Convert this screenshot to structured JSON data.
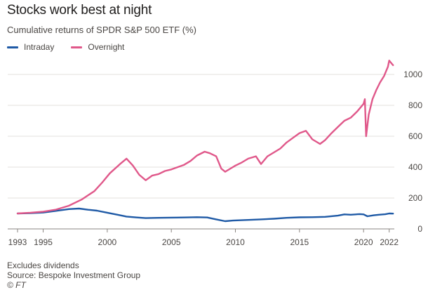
{
  "chart_data": {
    "type": "line",
    "title": "Stocks work best at night",
    "subtitle": "Cumulative returns of SPDR S&P 500 ETF (%)",
    "xlabel": "",
    "ylabel": "",
    "xlim": [
      1993.0,
      2022.4
    ],
    "ylim": [
      0,
      1100
    ],
    "x_ticks": [
      1993,
      1995,
      2000,
      2005,
      2010,
      2015,
      2020,
      2022
    ],
    "y_ticks": [
      0,
      200,
      400,
      600,
      800,
      1000
    ],
    "y_axis_side": "right",
    "grid": "horizontal",
    "legend_position": "top-left",
    "series": [
      {
        "name": "Intraday",
        "color": "#1f5aa6",
        "points": [
          [
            1993.0,
            100
          ],
          [
            1994.0,
            102
          ],
          [
            1995.0,
            106
          ],
          [
            1996.0,
            117
          ],
          [
            1997.0,
            128
          ],
          [
            1997.8,
            132
          ],
          [
            1998.5,
            124
          ],
          [
            1999.2,
            118
          ],
          [
            2000.0,
            105
          ],
          [
            2000.8,
            92
          ],
          [
            2001.5,
            80
          ],
          [
            2002.3,
            74
          ],
          [
            2003.0,
            70
          ],
          [
            2004.0,
            72
          ],
          [
            2005.0,
            73
          ],
          [
            2006.0,
            74
          ],
          [
            2007.0,
            76
          ],
          [
            2007.8,
            74
          ],
          [
            2008.5,
            62
          ],
          [
            2009.2,
            50
          ],
          [
            2009.8,
            54
          ],
          [
            2011.0,
            58
          ],
          [
            2012.0,
            62
          ],
          [
            2013.0,
            66
          ],
          [
            2014.0,
            72
          ],
          [
            2015.0,
            75
          ],
          [
            2016.0,
            76
          ],
          [
            2017.0,
            78
          ],
          [
            2018.0,
            86
          ],
          [
            2018.5,
            94
          ],
          [
            2019.0,
            92
          ],
          [
            2019.7,
            96
          ],
          [
            2020.0,
            94
          ],
          [
            2020.3,
            82
          ],
          [
            2020.8,
            88
          ],
          [
            2021.2,
            92
          ],
          [
            2021.7,
            95
          ],
          [
            2022.0,
            100
          ],
          [
            2022.3,
            99
          ]
        ]
      },
      {
        "name": "Overnight",
        "color": "#e0588a",
        "points": [
          [
            1993.0,
            100
          ],
          [
            1994.0,
            105
          ],
          [
            1995.0,
            112
          ],
          [
            1996.0,
            125
          ],
          [
            1997.0,
            150
          ],
          [
            1998.0,
            190
          ],
          [
            1999.0,
            245
          ],
          [
            1999.6,
            300
          ],
          [
            2000.2,
            360
          ],
          [
            2001.0,
            420
          ],
          [
            2001.5,
            455
          ],
          [
            2002.0,
            410
          ],
          [
            2002.5,
            350
          ],
          [
            2003.0,
            315
          ],
          [
            2003.5,
            345
          ],
          [
            2004.0,
            355
          ],
          [
            2004.5,
            375
          ],
          [
            2005.0,
            385
          ],
          [
            2005.5,
            400
          ],
          [
            2006.0,
            415
          ],
          [
            2006.5,
            440
          ],
          [
            2007.0,
            475
          ],
          [
            2007.6,
            500
          ],
          [
            2008.0,
            490
          ],
          [
            2008.5,
            470
          ],
          [
            2008.9,
            390
          ],
          [
            2009.2,
            370
          ],
          [
            2009.7,
            395
          ],
          [
            2010.0,
            410
          ],
          [
            2010.5,
            430
          ],
          [
            2011.0,
            455
          ],
          [
            2011.6,
            470
          ],
          [
            2012.0,
            420
          ],
          [
            2012.5,
            470
          ],
          [
            2013.0,
            495
          ],
          [
            2013.5,
            520
          ],
          [
            2014.0,
            560
          ],
          [
            2014.5,
            590
          ],
          [
            2015.0,
            620
          ],
          [
            2015.5,
            635
          ],
          [
            2016.0,
            580
          ],
          [
            2016.6,
            550
          ],
          [
            2017.0,
            575
          ],
          [
            2017.5,
            620
          ],
          [
            2018.0,
            660
          ],
          [
            2018.5,
            700
          ],
          [
            2019.0,
            720
          ],
          [
            2019.5,
            760
          ],
          [
            2020.0,
            810
          ],
          [
            2020.1,
            840
          ],
          [
            2020.2,
            600
          ],
          [
            2020.4,
            740
          ],
          [
            2020.7,
            840
          ],
          [
            2021.0,
            900
          ],
          [
            2021.3,
            950
          ],
          [
            2021.6,
            990
          ],
          [
            2021.9,
            1050
          ],
          [
            2022.0,
            1090
          ],
          [
            2022.2,
            1070
          ],
          [
            2022.3,
            1060
          ]
        ]
      }
    ]
  },
  "legend": [
    {
      "label": "Intraday",
      "color": "#1f5aa6"
    },
    {
      "label": "Overnight",
      "color": "#e0588a"
    }
  ],
  "notes": {
    "line1": "Excludes dividends",
    "line2": "Source: Bespoke Investment Group",
    "credit": "© FT"
  }
}
